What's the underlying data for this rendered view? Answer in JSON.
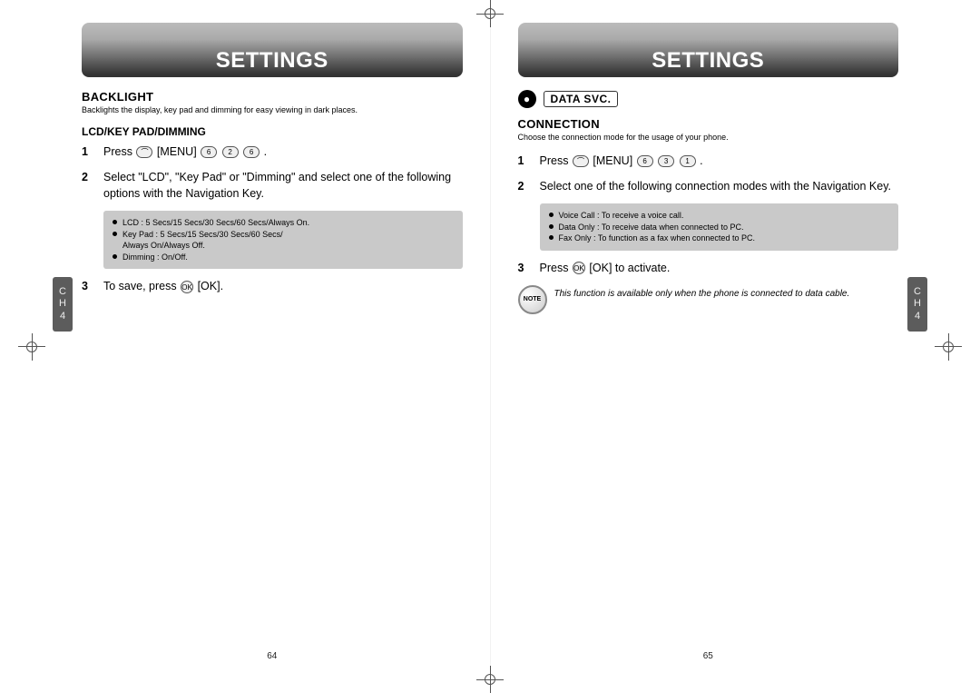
{
  "crosshair_color": "#555555",
  "background": "#ffffff",
  "left_page": {
    "header_title": "SETTINGS",
    "section_heading": "BACKLIGHT",
    "section_desc": "Backlights the display, key pad and dimming for easy viewing in dark places.",
    "subheading": "LCD/KEY PAD/DIMMING",
    "steps": [
      {
        "num": "1",
        "prefix": "Press ",
        "keys": [
          "⌒",
          "MENU",
          "6",
          "2",
          "6"
        ],
        "menu_label": " [MENU] ",
        "suffix": " ."
      },
      {
        "num": "2",
        "text": "Select \"LCD\", \"Key Pad\" or \"Dimming\" and select one of the following options with the Navigation Key."
      },
      {
        "num": "3",
        "prefix": "To save, press ",
        "keys": [
          "OK"
        ],
        "ok_label": " [OK].",
        "suffix": ""
      }
    ],
    "info_lines": [
      "LCD : 5 Secs/15 Secs/30 Secs/60 Secs/Always On.",
      "Key Pad : 5 Secs/15 Secs/30 Secs/60 Secs/",
      "Always On/Always Off.",
      "Dimming : On/Off."
    ],
    "info_indent_indices": [
      2
    ],
    "side_tab": {
      "line1": "C",
      "line2": "H",
      "line3": "4"
    },
    "page_number": "64"
  },
  "right_page": {
    "header_title": "SETTINGS",
    "pill_title": "DATA SVC.",
    "section_heading": "CONNECTION",
    "section_desc": "Choose the connection mode for the usage of your phone.",
    "steps": [
      {
        "num": "1",
        "prefix": "Press ",
        "keys": [
          "⌒",
          "MENU",
          "6",
          "3",
          "1"
        ],
        "menu_label": " [MENU] ",
        "suffix": " ."
      },
      {
        "num": "2",
        "text": "Select one of the following connection modes with the Navigation Key."
      },
      {
        "num": "3",
        "prefix": "Press ",
        "keys": [
          "OK"
        ],
        "ok_label": " [OK] to activate.",
        "suffix": ""
      }
    ],
    "info_lines": [
      "Voice Call : To receive a voice call.",
      "Data Only : To receive data when connected to PC.",
      "Fax Only : To function as a fax when connected to PC."
    ],
    "note_badge": "NOTE",
    "note_text": "This function is available only when the phone is connected to data cable.",
    "side_tab": {
      "line1": "C",
      "line2": "H",
      "line3": "4"
    },
    "page_number": "65"
  },
  "colors": {
    "header_gradient_top": "#bbbbbb",
    "header_gradient_bottom": "#333333",
    "info_box_bg": "#c9c9c9",
    "side_tab_bg": "#5c5c5c",
    "text": "#000000"
  },
  "fonts": {
    "header_title_size_pt": 18,
    "section_heading_size_pt": 10,
    "body_size_pt": 9,
    "info_box_size_pt": 7,
    "note_size_pt": 7
  }
}
